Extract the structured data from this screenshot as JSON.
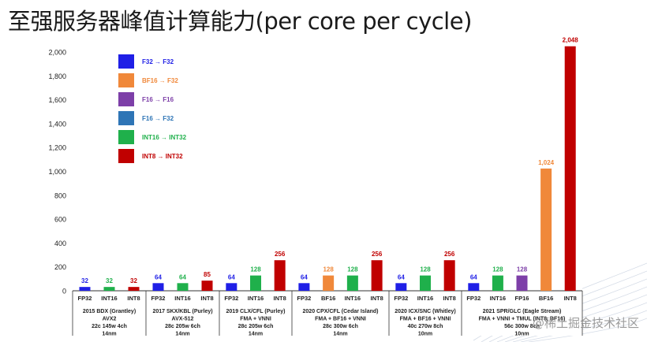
{
  "slide": {
    "title": "至强服务器峰值计算能力(per core per cycle)",
    "watermark": "@稀土掘金技术社区"
  },
  "chart_data": {
    "type": "bar",
    "ylim": [
      0,
      2000
    ],
    "yticks": [
      0,
      200,
      400,
      600,
      800,
      1000,
      1200,
      1400,
      1600,
      1800,
      2000
    ],
    "ytick_labels": [
      "0",
      "200",
      "400",
      "600",
      "800",
      "1,000",
      "1,200",
      "1,400",
      "1,600",
      "1,800",
      "2,000"
    ],
    "grid": false,
    "legend_position": "top-left",
    "legend": [
      {
        "key": "fp32",
        "label": "F32 → F32",
        "color": "#1f1fe6"
      },
      {
        "key": "bf16",
        "label": "BF16 → F32",
        "color": "#f0883a"
      },
      {
        "key": "f16",
        "label": "F16 → F16",
        "color": "#7d3fa8"
      },
      {
        "key": "f16f32",
        "label": "F16 → F32",
        "color": "#2e75b6"
      },
      {
        "key": "int16",
        "label": "INT16 → INT32",
        "color": "#1fb04b"
      },
      {
        "key": "int8",
        "label": "INT8 → INT32",
        "color": "#c00000"
      }
    ],
    "groups": [
      {
        "lines": [
          "2015 BDX (Grantley)",
          "AVX2",
          "22c  145w 4ch",
          "14nm"
        ],
        "bars": [
          {
            "label": "FP32",
            "value": 32,
            "value_label": "32",
            "color": "#1f1fe6"
          },
          {
            "label": "INT16",
            "value": 32,
            "value_label": "32",
            "color": "#1fb04b"
          },
          {
            "label": "INT8",
            "value": 32,
            "value_label": "32",
            "color": "#c00000"
          }
        ]
      },
      {
        "lines": [
          "2017 SKX/KBL (Purley)",
          "AVX-512",
          "28c  205w 6ch",
          "14nm"
        ],
        "bars": [
          {
            "label": "FP32",
            "value": 64,
            "value_label": "64",
            "color": "#1f1fe6"
          },
          {
            "label": "INT16",
            "value": 64,
            "value_label": "64",
            "color": "#1fb04b"
          },
          {
            "label": "INT8",
            "value": 85,
            "value_label": "85",
            "color": "#c00000"
          }
        ]
      },
      {
        "lines": [
          "2019 CLX/CFL (Purley)",
          "FMA + VNNI",
          "28c  205w 6ch",
          "14nm"
        ],
        "bars": [
          {
            "label": "FP32",
            "value": 64,
            "value_label": "64",
            "color": "#1f1fe6"
          },
          {
            "label": "INT16",
            "value": 128,
            "value_label": "128",
            "color": "#1fb04b"
          },
          {
            "label": "INT8",
            "value": 256,
            "value_label": "256",
            "color": "#c00000"
          }
        ]
      },
      {
        "lines": [
          "2020 CPX/CFL (Cedar Island)",
          "FMA + BF16 + VNNI",
          "28c  300w 6ch",
          "14nm"
        ],
        "bars": [
          {
            "label": "FP32",
            "value": 64,
            "value_label": "64",
            "color": "#1f1fe6"
          },
          {
            "label": "BF16",
            "value": 128,
            "value_label": "128",
            "color": "#f0883a"
          },
          {
            "label": "INT16",
            "value": 128,
            "value_label": "128",
            "color": "#1fb04b"
          },
          {
            "label": "INT8",
            "value": 256,
            "value_label": "256",
            "color": "#c00000"
          }
        ]
      },
      {
        "lines": [
          "2020 ICX/SNC (Whitley)",
          "FMA + BF16 + VNNI",
          "40c  270w 8ch",
          "10nm"
        ],
        "bars": [
          {
            "label": "FP32",
            "value": 64,
            "value_label": "64",
            "color": "#1f1fe6"
          },
          {
            "label": "INT16",
            "value": 128,
            "value_label": "128",
            "color": "#1fb04b"
          },
          {
            "label": "INT8",
            "value": 256,
            "value_label": "256",
            "color": "#c00000"
          }
        ]
      },
      {
        "lines": [
          "2021 SPR/GLC (Eagle Stream)",
          "FMA + VNNI + TMUL (INT8, BF16)",
          "56c  300w 8ch",
          "10nm"
        ],
        "bars": [
          {
            "label": "FP32",
            "value": 64,
            "value_label": "64",
            "color": "#1f1fe6"
          },
          {
            "label": "INT16",
            "value": 128,
            "value_label": "128",
            "color": "#1fb04b"
          },
          {
            "label": "FP16",
            "value": 128,
            "value_label": "128",
            "color": "#7d3fa8"
          },
          {
            "label": "BF16",
            "value": 1024,
            "value_label": "1,024",
            "color": "#f0883a"
          },
          {
            "label": "INT8",
            "value": 2048,
            "value_label": "2,048",
            "color": "#c00000"
          }
        ]
      }
    ]
  }
}
